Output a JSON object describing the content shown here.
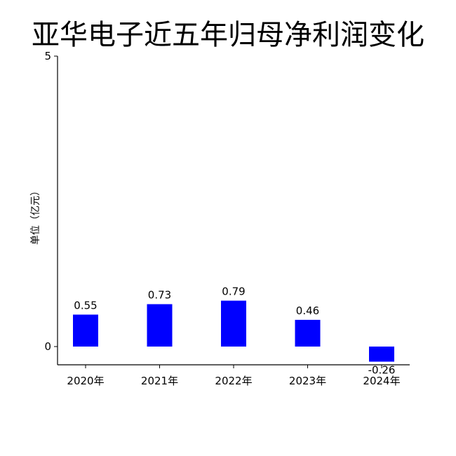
{
  "chart_data": {
    "type": "bar",
    "title": "亚华电子近五年归母净利润变化",
    "ylabel": "单位（亿元）",
    "xlabel": "",
    "categories": [
      "2020年",
      "2021年",
      "2022年",
      "2023年",
      "2024年"
    ],
    "values": [
      0.55,
      0.73,
      0.79,
      0.46,
      -0.26
    ],
    "value_labels": [
      "0.55",
      "0.73",
      "0.79",
      "0.46",
      "-0.26"
    ],
    "ylim": [
      -0.32,
      5
    ],
    "yticks": [
      0,
      5
    ],
    "ytick_labels": [
      "0",
      "5"
    ],
    "bar_color": "#0000ff",
    "grid": false,
    "legend": "none"
  }
}
